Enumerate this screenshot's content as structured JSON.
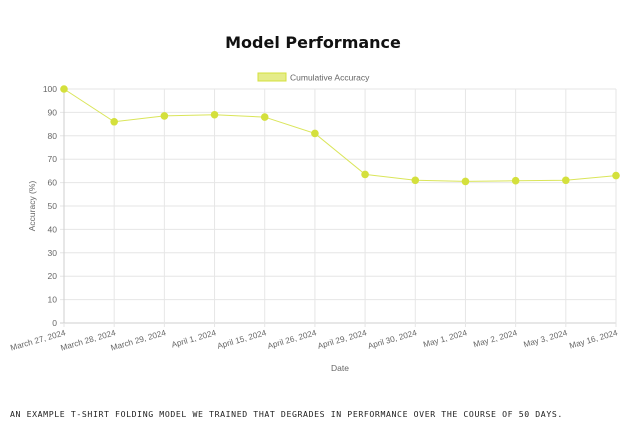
{
  "title": "Model Performance",
  "caption": "An example T-shirt folding model we trained that degrades in performance over the course of 50 days.",
  "chart_data": {
    "type": "line",
    "title": "Model Performance",
    "xlabel": "Date",
    "ylabel": "Accuracy (%)",
    "ylim": [
      0,
      100
    ],
    "yticks": [
      0,
      10,
      20,
      30,
      40,
      50,
      60,
      70,
      80,
      90,
      100
    ],
    "grid": true,
    "legend_position": "top",
    "categories": [
      "March 27, 2024",
      "March 28, 2024",
      "March 29, 2024",
      "April 1, 2024",
      "April 15, 2024",
      "April 26, 2024",
      "April 29, 2024",
      "April 30, 2024",
      "May 1, 2024",
      "May 2, 2024",
      "May 3, 2024",
      "May 16, 2024"
    ],
    "series": [
      {
        "name": "Cumulative Accuracy",
        "color": "#d4e03c",
        "values": [
          100,
          86,
          88.5,
          89,
          88,
          81,
          63.5,
          61,
          60.5,
          60.8,
          61,
          63
        ]
      }
    ]
  }
}
